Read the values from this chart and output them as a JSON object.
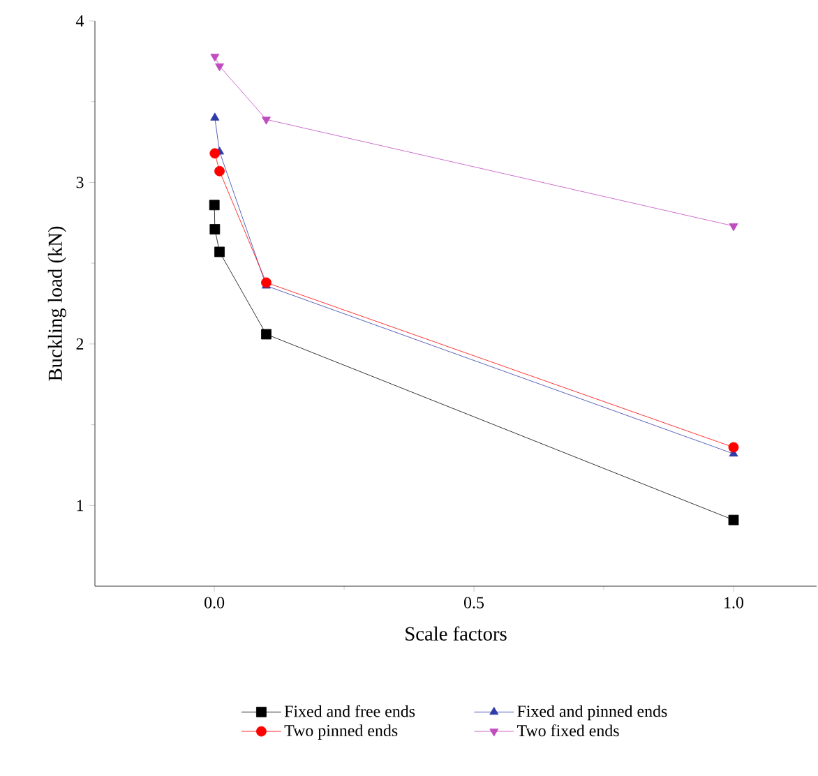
{
  "chart_data": {
    "type": "line",
    "xlabel": "Scale factors",
    "ylabel": "Buckling load (kN)",
    "xlim": [
      -0.23,
      1.16
    ],
    "ylim": [
      0.5,
      4
    ],
    "xticks": [
      {
        "value": 0,
        "label": "0.0"
      },
      0.5,
      {
        "value": 1,
        "label": "1.0"
      }
    ],
    "yticks": [
      1,
      2,
      3,
      4
    ],
    "legend": "bottom",
    "grid": false,
    "series": [
      {
        "name": "Fixed and free ends",
        "color": "#000000",
        "marker": "square",
        "x": [
          0.0001,
          0.001,
          0.01,
          0.1,
          1
        ],
        "values": [
          2.86,
          2.71,
          2.57,
          2.06,
          0.91
        ]
      },
      {
        "name": "Fixed and pinned ends",
        "color": "#2e3ba8",
        "marker": "triangle",
        "x": [
          0.001,
          0.01,
          0.1,
          1
        ],
        "values": [
          3.4,
          3.19,
          2.36,
          1.32
        ]
      },
      {
        "name": "Two pinned ends",
        "color": "#ff0000",
        "marker": "circle",
        "x": [
          0.001,
          0.01,
          0.1,
          1
        ],
        "values": [
          3.18,
          3.07,
          2.38,
          1.36
        ]
      },
      {
        "name": "Two fixed ends",
        "color": "#c04dc0",
        "marker": "triangle down",
        "x": [
          0.001,
          0.01,
          0.1,
          1
        ],
        "values": [
          3.78,
          3.72,
          3.39,
          2.73
        ]
      }
    ]
  }
}
